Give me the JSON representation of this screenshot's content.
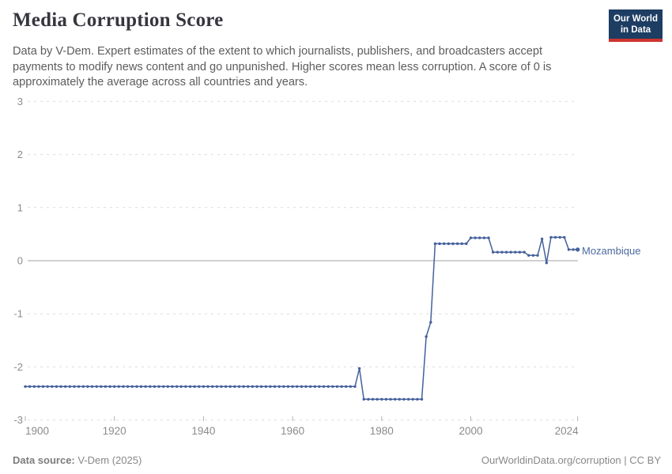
{
  "header": {
    "title": "Media Corruption Score",
    "subtitle": "Data by V-Dem. Expert estimates of the extent to which journalists, publishers, and broadcasters accept\npayments to modify news content and go unpunished. Higher scores mean less corruption. A score of 0 is\napproximately the average across all countries and years.",
    "logo": {
      "line1": "Our World",
      "line2": "in Data"
    }
  },
  "footer": {
    "source_label": "Data source:",
    "source_value": " V-Dem (2025)",
    "link_text": "OurWorldinData.org/corruption | CC BY"
  },
  "chart_data": {
    "type": "line",
    "title": "Media Corruption Score",
    "series_label": "Mozambique",
    "xlabel": "",
    "ylabel": "",
    "xlim": [
      1900,
      2024
    ],
    "ylim": [
      -3,
      3
    ],
    "x_ticks": [
      1900,
      1920,
      1940,
      1960,
      1980,
      2000,
      2024
    ],
    "y_ticks": [
      3,
      2,
      1,
      0,
      -1,
      -2,
      -3
    ],
    "grid": "dashed-horizontal",
    "zero_line": true,
    "legend_position": "end-of-line-label",
    "colors": {
      "line": "#44609c",
      "label": "#4c6a9e",
      "grid": "#dcdcdc",
      "zero_axis": "#a1a1a1",
      "tick_text": "#8b8b8b"
    },
    "points": [
      [
        1900,
        -2.37
      ],
      [
        1901,
        -2.37
      ],
      [
        1902,
        -2.37
      ],
      [
        1903,
        -2.37
      ],
      [
        1904,
        -2.37
      ],
      [
        1905,
        -2.37
      ],
      [
        1906,
        -2.37
      ],
      [
        1907,
        -2.37
      ],
      [
        1908,
        -2.37
      ],
      [
        1909,
        -2.37
      ],
      [
        1910,
        -2.37
      ],
      [
        1911,
        -2.37
      ],
      [
        1912,
        -2.37
      ],
      [
        1913,
        -2.37
      ],
      [
        1914,
        -2.37
      ],
      [
        1915,
        -2.37
      ],
      [
        1916,
        -2.37
      ],
      [
        1917,
        -2.37
      ],
      [
        1918,
        -2.37
      ],
      [
        1919,
        -2.37
      ],
      [
        1920,
        -2.37
      ],
      [
        1921,
        -2.37
      ],
      [
        1922,
        -2.37
      ],
      [
        1923,
        -2.37
      ],
      [
        1924,
        -2.37
      ],
      [
        1925,
        -2.37
      ],
      [
        1926,
        -2.37
      ],
      [
        1927,
        -2.37
      ],
      [
        1928,
        -2.37
      ],
      [
        1929,
        -2.37
      ],
      [
        1930,
        -2.37
      ],
      [
        1931,
        -2.37
      ],
      [
        1932,
        -2.37
      ],
      [
        1933,
        -2.37
      ],
      [
        1934,
        -2.37
      ],
      [
        1935,
        -2.37
      ],
      [
        1936,
        -2.37
      ],
      [
        1937,
        -2.37
      ],
      [
        1938,
        -2.37
      ],
      [
        1939,
        -2.37
      ],
      [
        1940,
        -2.37
      ],
      [
        1941,
        -2.37
      ],
      [
        1942,
        -2.37
      ],
      [
        1943,
        -2.37
      ],
      [
        1944,
        -2.37
      ],
      [
        1945,
        -2.37
      ],
      [
        1946,
        -2.37
      ],
      [
        1947,
        -2.37
      ],
      [
        1948,
        -2.37
      ],
      [
        1949,
        -2.37
      ],
      [
        1950,
        -2.37
      ],
      [
        1951,
        -2.37
      ],
      [
        1952,
        -2.37
      ],
      [
        1953,
        -2.37
      ],
      [
        1954,
        -2.37
      ],
      [
        1955,
        -2.37
      ],
      [
        1956,
        -2.37
      ],
      [
        1957,
        -2.37
      ],
      [
        1958,
        -2.37
      ],
      [
        1959,
        -2.37
      ],
      [
        1960,
        -2.37
      ],
      [
        1961,
        -2.37
      ],
      [
        1962,
        -2.37
      ],
      [
        1963,
        -2.37
      ],
      [
        1964,
        -2.37
      ],
      [
        1965,
        -2.37
      ],
      [
        1966,
        -2.37
      ],
      [
        1967,
        -2.37
      ],
      [
        1968,
        -2.37
      ],
      [
        1969,
        -2.37
      ],
      [
        1970,
        -2.37
      ],
      [
        1971,
        -2.37
      ],
      [
        1972,
        -2.37
      ],
      [
        1973,
        -2.37
      ],
      [
        1974,
        -2.37
      ],
      [
        1975,
        -2.03
      ],
      [
        1976,
        -2.61
      ],
      [
        1977,
        -2.61
      ],
      [
        1978,
        -2.61
      ],
      [
        1979,
        -2.61
      ],
      [
        1980,
        -2.61
      ],
      [
        1981,
        -2.61
      ],
      [
        1982,
        -2.61
      ],
      [
        1983,
        -2.61
      ],
      [
        1984,
        -2.61
      ],
      [
        1985,
        -2.61
      ],
      [
        1986,
        -2.61
      ],
      [
        1987,
        -2.61
      ],
      [
        1988,
        -2.61
      ],
      [
        1989,
        -2.61
      ],
      [
        1990,
        -1.43
      ],
      [
        1991,
        -1.16
      ],
      [
        1992,
        0.32
      ],
      [
        1993,
        0.32
      ],
      [
        1994,
        0.32
      ],
      [
        1995,
        0.32
      ],
      [
        1996,
        0.32
      ],
      [
        1997,
        0.32
      ],
      [
        1998,
        0.32
      ],
      [
        1999,
        0.32
      ],
      [
        2000,
        0.43
      ],
      [
        2001,
        0.43
      ],
      [
        2002,
        0.43
      ],
      [
        2003,
        0.43
      ],
      [
        2004,
        0.43
      ],
      [
        2005,
        0.16
      ],
      [
        2006,
        0.16
      ],
      [
        2007,
        0.16
      ],
      [
        2008,
        0.16
      ],
      [
        2009,
        0.16
      ],
      [
        2010,
        0.16
      ],
      [
        2011,
        0.16
      ],
      [
        2012,
        0.16
      ],
      [
        2013,
        0.1
      ],
      [
        2014,
        0.1
      ],
      [
        2015,
        0.1
      ],
      [
        2016,
        0.41
      ],
      [
        2017,
        -0.04
      ],
      [
        2018,
        0.44
      ],
      [
        2019,
        0.44
      ],
      [
        2020,
        0.44
      ],
      [
        2021,
        0.44
      ],
      [
        2022,
        0.21
      ],
      [
        2023,
        0.21
      ],
      [
        2024,
        0.21
      ]
    ]
  }
}
